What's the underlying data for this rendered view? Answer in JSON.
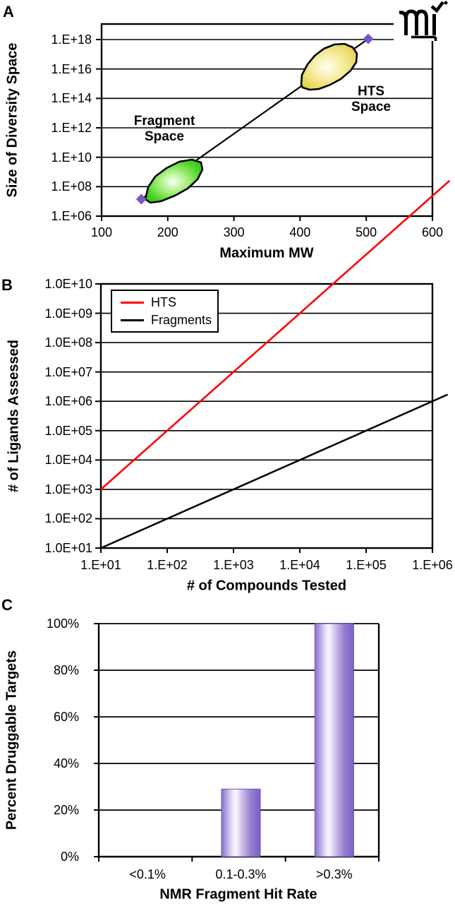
{
  "figure": {
    "panel_labels": [
      "A",
      "B",
      "C"
    ],
    "logo_text": "mi"
  },
  "colors": {
    "hts_line": "#FF0000",
    "fragments_line": "#000000",
    "diamond_marker": "#7A55C8",
    "fragment_blob_edge": "#2BC411",
    "fragment_blob_center": "#F6FFF2",
    "hts_blob_edge": "#E7D24B",
    "hts_blob_center": "#FFFEF2",
    "bar_fill": "#7B5FC4",
    "bar_highlight": "#F8F5FD",
    "axis": "#000000"
  },
  "chart_data": [
    {
      "panel": "A",
      "type": "scatter",
      "xlabel": "Maximum MW",
      "ylabel": "Size of Diversity Space",
      "xscale": "linear",
      "yscale": "log",
      "xlim": [
        100,
        600
      ],
      "ylim_log10": [
        6,
        19
      ],
      "grid": "horizontal",
      "x_tick_labels": [
        "100",
        "200",
        "300",
        "400",
        "500",
        "600"
      ],
      "x_tick_values": [
        100,
        200,
        300,
        400,
        500,
        600
      ],
      "y_tick_labels": [
        "1.E+06",
        "1.E+08",
        "1.E+10",
        "1.E+12",
        "1.E+14",
        "1.E+16",
        "1.E+18"
      ],
      "y_tick_log10": [
        6,
        8,
        10,
        12,
        14,
        16,
        18
      ],
      "series": [
        {
          "name": "diversity-space-line",
          "marker": "purple-diamond",
          "line_color": "#000000",
          "points": [
            {
              "mw": 160,
              "log10_size": 7.15
            },
            {
              "mw": 503,
              "log10_size": 18.05
            }
          ]
        }
      ],
      "regions": [
        {
          "label": "Fragment Space",
          "label_lines": [
            "Fragment",
            "Space"
          ],
          "mw_range": [
            165,
            255
          ],
          "log10_size_range": [
            6.9,
            9.8
          ],
          "fill": "green"
        },
        {
          "label": "HTS Space",
          "label_lines": [
            "HTS",
            "Space"
          ],
          "mw_range": [
            400,
            490
          ],
          "log10_size_range": [
            14.6,
            17.7
          ],
          "fill": "yellow"
        }
      ]
    },
    {
      "panel": "B",
      "type": "line",
      "xlabel": "# of Compounds Tested",
      "ylabel": "# of Ligands Assessed",
      "xscale": "log",
      "yscale": "log",
      "xlim_log10": [
        1,
        6
      ],
      "ylim_log10": [
        1,
        10
      ],
      "grid": "horizontal",
      "legend_position": "top-left",
      "x_tick_labels": [
        "1.E+01",
        "1.E+02",
        "1.E+03",
        "1.E+04",
        "1.E+05",
        "1.E+06"
      ],
      "x_tick_log10": [
        1,
        2,
        3,
        4,
        5,
        6
      ],
      "y_tick_labels": [
        "1.0E+01",
        "1.0E+02",
        "1.0E+03",
        "1.0E+04",
        "1.0E+05",
        "1.0E+06",
        "1.0E+07",
        "1.0E+08",
        "1.0E+09",
        "1.0E+10"
      ],
      "y_tick_log10": [
        1,
        2,
        3,
        4,
        5,
        6,
        7,
        8,
        9,
        10
      ],
      "series": [
        {
          "name": "HTS",
          "color": "#FF0000",
          "slope_log10": 2,
          "points_log10": [
            [
              1,
              3
            ],
            [
              2,
              5
            ],
            [
              3,
              7
            ],
            [
              4,
              9
            ],
            [
              4.5,
              10
            ],
            [
              6.26,
              13.52
            ]
          ],
          "note": "line drawn beyond plot area past top-right corner"
        },
        {
          "name": "Fragments",
          "color": "#000000",
          "slope_log10": 1,
          "points_log10": [
            [
              1,
              1
            ],
            [
              2,
              2
            ],
            [
              3,
              3
            ],
            [
              4,
              4
            ],
            [
              5,
              5
            ],
            [
              6,
              6
            ],
            [
              6.23,
              6.23
            ]
          ],
          "note": "identity line, extends slightly beyond right border"
        }
      ]
    },
    {
      "panel": "C",
      "type": "bar",
      "xlabel": "NMR Fragment Hit Rate",
      "ylabel": "Percent Druggable Targets",
      "categories": [
        "<0.1%",
        "0.1-0.3%",
        ">0.3%"
      ],
      "values": [
        0,
        29,
        100
      ],
      "y_tick_labels": [
        "0%",
        "20%",
        "40%",
        "60%",
        "80%",
        "100%"
      ],
      "y_tick_values": [
        0,
        20,
        40,
        60,
        80,
        100
      ],
      "ylim": [
        0,
        100
      ],
      "grid": "horizontal",
      "bar_style": "purple gradient with light vertical highlight"
    }
  ]
}
